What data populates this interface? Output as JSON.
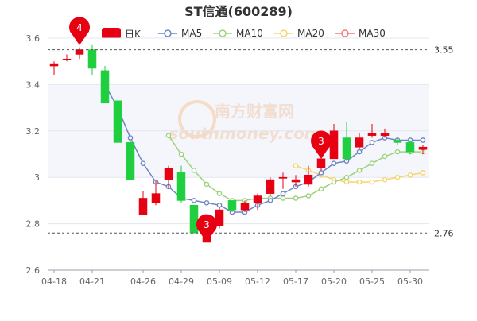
{
  "chart_data": {
    "type": "candlestick",
    "title": "ST信通(600289)",
    "legend": {
      "placement": "top",
      "items": [
        {
          "name": "日K",
          "color": "#e60012",
          "style": "candle"
        },
        {
          "name": "MA5",
          "color": "#6f86c6",
          "style": "line"
        },
        {
          "name": "MA10",
          "color": "#9fd27c",
          "style": "line"
        },
        {
          "name": "MA20",
          "color": "#f7d46a",
          "style": "line"
        },
        {
          "name": "MA30",
          "color": "#ef7c7c",
          "style": "line"
        }
      ]
    },
    "x_tick_labels": [
      "04-18",
      "04-21",
      "04-26",
      "04-29",
      "05-09",
      "05-12",
      "05-17",
      "05-20",
      "05-25",
      "05-30"
    ],
    "x_tick_index": [
      0,
      3,
      7,
      10,
      13,
      16,
      19,
      22,
      25,
      28
    ],
    "y_axis": {
      "min": 2.6,
      "max": 3.6,
      "ticks": [
        2.6,
        2.8,
        3.0,
        3.2,
        3.4,
        3.6
      ],
      "tick_labels": [
        "2.6",
        "2.8",
        "3",
        "3.2",
        "3.4",
        "3.6"
      ]
    },
    "grid": true,
    "candles": [
      {
        "o": 3.48,
        "c": 3.49,
        "h": 3.5,
        "l": 3.44
      },
      {
        "o": 3.51,
        "c": 3.51,
        "h": 3.53,
        "l": 3.5
      },
      {
        "o": 3.53,
        "c": 3.55,
        "h": 3.56,
        "l": 3.51
      },
      {
        "o": 3.55,
        "c": 3.47,
        "h": 3.57,
        "l": 3.44
      },
      {
        "o": 3.46,
        "c": 3.32,
        "h": 3.48,
        "l": 3.32
      },
      {
        "o": 3.33,
        "c": 3.15,
        "h": 3.33,
        "l": 3.15
      },
      {
        "o": 3.15,
        "c": 2.99,
        "h": 3.16,
        "l": 2.99
      },
      {
        "o": 2.84,
        "c": 2.91,
        "h": 2.94,
        "l": 2.84
      },
      {
        "o": 2.89,
        "c": 2.93,
        "h": 2.99,
        "l": 2.88
      },
      {
        "o": 2.99,
        "c": 3.04,
        "h": 3.05,
        "l": 2.95
      },
      {
        "o": 3.02,
        "c": 2.9,
        "h": 3.05,
        "l": 2.89
      },
      {
        "o": 2.88,
        "c": 2.76,
        "h": 2.88,
        "l": 2.76
      },
      {
        "o": 2.72,
        "c": 2.8,
        "h": 2.82,
        "l": 2.72
      },
      {
        "o": 2.79,
        "c": 2.86,
        "h": 2.87,
        "l": 2.78
      },
      {
        "o": 2.9,
        "c": 2.86,
        "h": 2.9,
        "l": 2.85
      },
      {
        "o": 2.86,
        "c": 2.89,
        "h": 2.9,
        "l": 2.85
      },
      {
        "o": 2.89,
        "c": 2.92,
        "h": 2.93,
        "l": 2.86
      },
      {
        "o": 2.93,
        "c": 2.99,
        "h": 3.0,
        "l": 2.92
      },
      {
        "o": 3.0,
        "c": 3.0,
        "h": 3.02,
        "l": 2.95
      },
      {
        "o": 2.98,
        "c": 2.99,
        "h": 3.01,
        "l": 2.96
      },
      {
        "o": 2.97,
        "c": 3.01,
        "h": 3.05,
        "l": 2.96
      },
      {
        "o": 3.04,
        "c": 3.08,
        "h": 3.08,
        "l": 3.03
      },
      {
        "o": 3.08,
        "c": 3.2,
        "h": 3.23,
        "l": 3.08
      },
      {
        "o": 3.17,
        "c": 3.08,
        "h": 3.24,
        "l": 3.07
      },
      {
        "o": 3.13,
        "c": 3.17,
        "h": 3.19,
        "l": 3.12
      },
      {
        "o": 3.18,
        "c": 3.19,
        "h": 3.23,
        "l": 3.17
      },
      {
        "o": 3.18,
        "c": 3.19,
        "h": 3.21,
        "l": 3.17
      },
      {
        "o": 3.16,
        "c": 3.15,
        "h": 3.17,
        "l": 3.14
      },
      {
        "o": 3.15,
        "c": 3.11,
        "h": 3.16,
        "l": 3.1
      },
      {
        "o": 3.12,
        "c": 3.13,
        "h": 3.14,
        "l": 3.1
      }
    ],
    "ma5": [
      null,
      null,
      null,
      null,
      3.4,
      3.3,
      3.17,
      3.06,
      2.98,
      2.96,
      2.91,
      2.9,
      2.89,
      2.88,
      2.85,
      2.85,
      2.88,
      2.9,
      2.93,
      2.96,
      2.98,
      3.02,
      3.06,
      3.07,
      3.11,
      3.15,
      3.17,
      3.16,
      3.16,
      3.16
    ],
    "ma10": [
      null,
      null,
      null,
      null,
      null,
      null,
      null,
      null,
      null,
      3.18,
      3.1,
      3.03,
      2.97,
      2.93,
      2.9,
      2.9,
      2.91,
      2.91,
      2.91,
      2.91,
      2.92,
      2.95,
      2.98,
      3.0,
      3.03,
      3.06,
      3.09,
      3.11,
      3.11,
      3.11
    ],
    "ma20": [
      null,
      null,
      null,
      null,
      null,
      null,
      null,
      null,
      null,
      null,
      null,
      null,
      null,
      null,
      null,
      null,
      null,
      null,
      null,
      3.05,
      3.03,
      3.01,
      2.99,
      2.98,
      2.98,
      2.98,
      2.99,
      3.0,
      3.01,
      3.02
    ],
    "reference_lines": [
      {
        "value": 3.55,
        "label": "3.55"
      },
      {
        "value": 2.76,
        "label": "2.76"
      }
    ],
    "markers": [
      {
        "index": 2,
        "value": 3.57,
        "label": "4"
      },
      {
        "index": 12,
        "value": 2.72,
        "label": "3"
      },
      {
        "index": 21,
        "value": 3.08,
        "label": "3"
      }
    ],
    "watermark": {
      "text_cn": "南方财富网",
      "text_en": "southmoney.com"
    }
  }
}
